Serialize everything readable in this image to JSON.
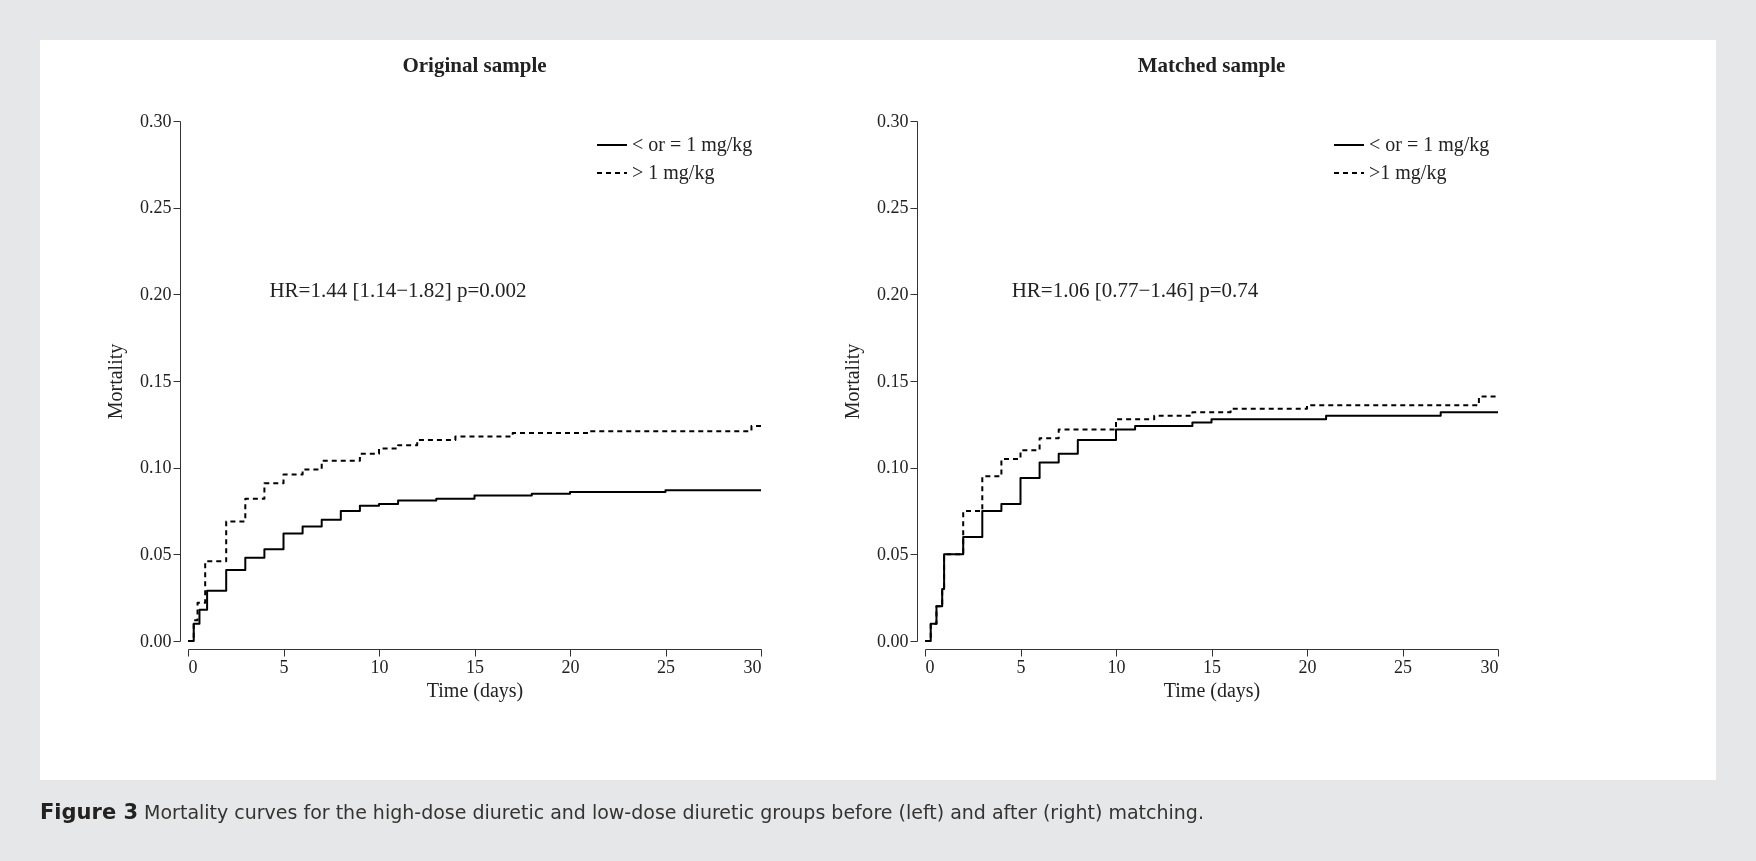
{
  "chart_data": [
    {
      "type": "step",
      "title": "Original sample",
      "xlabel": "Time (days)",
      "ylabel": "Mortality",
      "xlim": [
        0,
        30
      ],
      "xticks": [
        0,
        5,
        10,
        15,
        20,
        25,
        30
      ],
      "ylim": [
        0,
        0.3
      ],
      "yticks": [
        {
          "value": 0,
          "label": "0.00"
        },
        0.05,
        {
          "value": 0.1,
          "label": "0.10"
        },
        0.15,
        {
          "value": 0.2,
          "label": "0.20"
        },
        0.25,
        {
          "value": 0.3,
          "label": "0.30"
        }
      ],
      "legend": "top right",
      "grid": false,
      "annotations": [
        "HR=1.44 [1.14−1.82]  p=0.002",
        "Figure 3 Mortality curves for the high-dose diuretic and low-dose diuretic groups before (left) and after (right) matching."
      ],
      "series": [
        {
          "name": "< or = 1 mg/kg",
          "color": "#000000",
          "line_style": "solid",
          "x": [
            0,
            0.3,
            0.6,
            1,
            2,
            3,
            4,
            5,
            6,
            7,
            8,
            9,
            10,
            11,
            13,
            15,
            18,
            20,
            25,
            30
          ],
          "values": [
            0,
            0.01,
            0.018,
            0.029,
            0.041,
            0.048,
            0.053,
            0.062,
            0.066,
            0.07,
            0.075,
            0.078,
            0.079,
            0.081,
            0.082,
            0.084,
            0.085,
            0.086,
            0.087,
            0.087
          ]
        },
        {
          "name": "> 1 mg/kg",
          "color": "#000000",
          "line_style": "dashed",
          "x": [
            0,
            0.3,
            0.5,
            0.9,
            2,
            3,
            4,
            5,
            6,
            7,
            9,
            10,
            11,
            12,
            14,
            17,
            21,
            29.5,
            30
          ],
          "values": [
            0,
            0.012,
            0.022,
            0.046,
            0.069,
            0.082,
            0.091,
            0.096,
            0.099,
            0.104,
            0.108,
            0.111,
            0.113,
            0.116,
            0.118,
            0.12,
            0.121,
            0.124,
            0.124
          ]
        }
      ]
    },
    {
      "type": "step",
      "title": "Matched sample",
      "xlabel": "Time (days)",
      "ylabel": "Mortality",
      "xlim": [
        0,
        30
      ],
      "xticks": [
        0,
        5,
        10,
        15,
        20,
        25,
        30
      ],
      "ylim": [
        0,
        0.3
      ],
      "yticks": [
        {
          "value": 0,
          "label": "0.00"
        },
        0.05,
        {
          "value": 0.1,
          "label": "0.10"
        },
        0.15,
        {
          "value": 0.2,
          "label": "0.20"
        },
        0.25,
        {
          "value": 0.3,
          "label": "0.30"
        }
      ],
      "legend": "top right",
      "grid": false,
      "annotations": [
        "HR=1.06 [0.77−1.46] p=0.74"
      ],
      "series": [
        {
          "name": "< or = 1 mg/kg",
          "color": "#000000",
          "line_style": "solid",
          "x": [
            0,
            0.3,
            0.6,
            0.9,
            1,
            2,
            3,
            4,
            5,
            6,
            7,
            8,
            10,
            11,
            14,
            15,
            21,
            27,
            30
          ],
          "values": [
            0,
            0.01,
            0.02,
            0.03,
            0.05,
            0.06,
            0.075,
            0.079,
            0.094,
            0.103,
            0.108,
            0.116,
            0.122,
            0.124,
            0.126,
            0.128,
            0.13,
            0.132,
            0.132
          ]
        },
        {
          "name": ">1 mg/kg",
          "color": "#000000",
          "line_style": "dashed",
          "x": [
            0,
            0.3,
            0.6,
            0.9,
            1,
            2,
            3,
            4,
            5,
            6,
            7,
            10,
            12,
            14,
            16,
            20,
            29,
            30
          ],
          "values": [
            0,
            0.01,
            0.02,
            0.03,
            0.05,
            0.075,
            0.095,
            0.105,
            0.11,
            0.117,
            0.122,
            0.128,
            0.13,
            0.132,
            0.134,
            0.136,
            0.141,
            0.141
          ]
        }
      ]
    }
  ]
}
